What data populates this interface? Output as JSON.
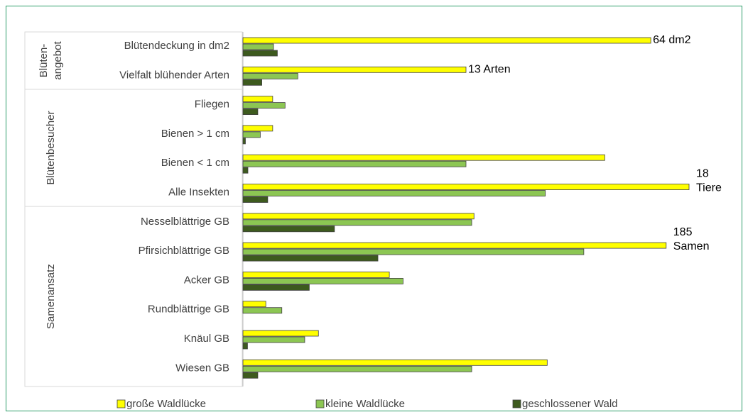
{
  "chart_data": {
    "type": "bar",
    "orientation": "horizontal",
    "categories": [
      "Blütendeckung in dm2",
      "Vielfalt blühender Arten",
      "Fliegen",
      "Bienen > 1 cm",
      "Bienen < 1 cm",
      "Alle Insekten",
      "Nesselblättrige GB",
      "Pfirsichblättrige GB",
      "Acker GB",
      "Rundblättrige GB",
      "Knäul GB",
      "Wiesen GB"
    ],
    "xlims": [
      [
        0,
        70
      ],
      [
        0,
        26
      ],
      [
        0,
        18
      ],
      [
        0,
        18
      ],
      [
        0,
        18
      ],
      [
        0,
        18
      ],
      [
        0,
        195
      ],
      [
        0,
        195
      ],
      [
        0,
        195
      ],
      [
        0,
        195
      ],
      [
        0,
        195
      ],
      [
        0,
        195
      ]
    ],
    "groups": [
      {
        "label": "Blüten-\nangebot",
        "rows": 2
      },
      {
        "label": "Blütenbesucher",
        "rows": 4
      },
      {
        "label": "Samenansatz",
        "rows": 6
      }
    ],
    "series": [
      {
        "name": "große Waldlücke",
        "color": "#ffff00",
        "values": [
          64,
          13,
          1.2,
          1.2,
          14.6,
          18,
          101,
          185,
          64,
          10,
          33,
          133
        ],
        "value_labels": [
          "64 dm2",
          "13 Arten",
          null,
          null,
          null,
          "18\nTiere",
          null,
          "185\nSamen",
          null,
          null,
          null,
          null
        ]
      },
      {
        "name": "kleine Waldlücke",
        "color": "#8cc653",
        "values": [
          4.8,
          3.2,
          1.7,
          0.7,
          9.0,
          12.2,
          100,
          149,
          70,
          17,
          27,
          100
        ]
      },
      {
        "name": "geschlossener Wald",
        "color": "#3d5a1e",
        "values": [
          5.4,
          1.1,
          0.6,
          0.1,
          0.2,
          1.0,
          40,
          59,
          29,
          0,
          2,
          6.5
        ]
      }
    ]
  }
}
